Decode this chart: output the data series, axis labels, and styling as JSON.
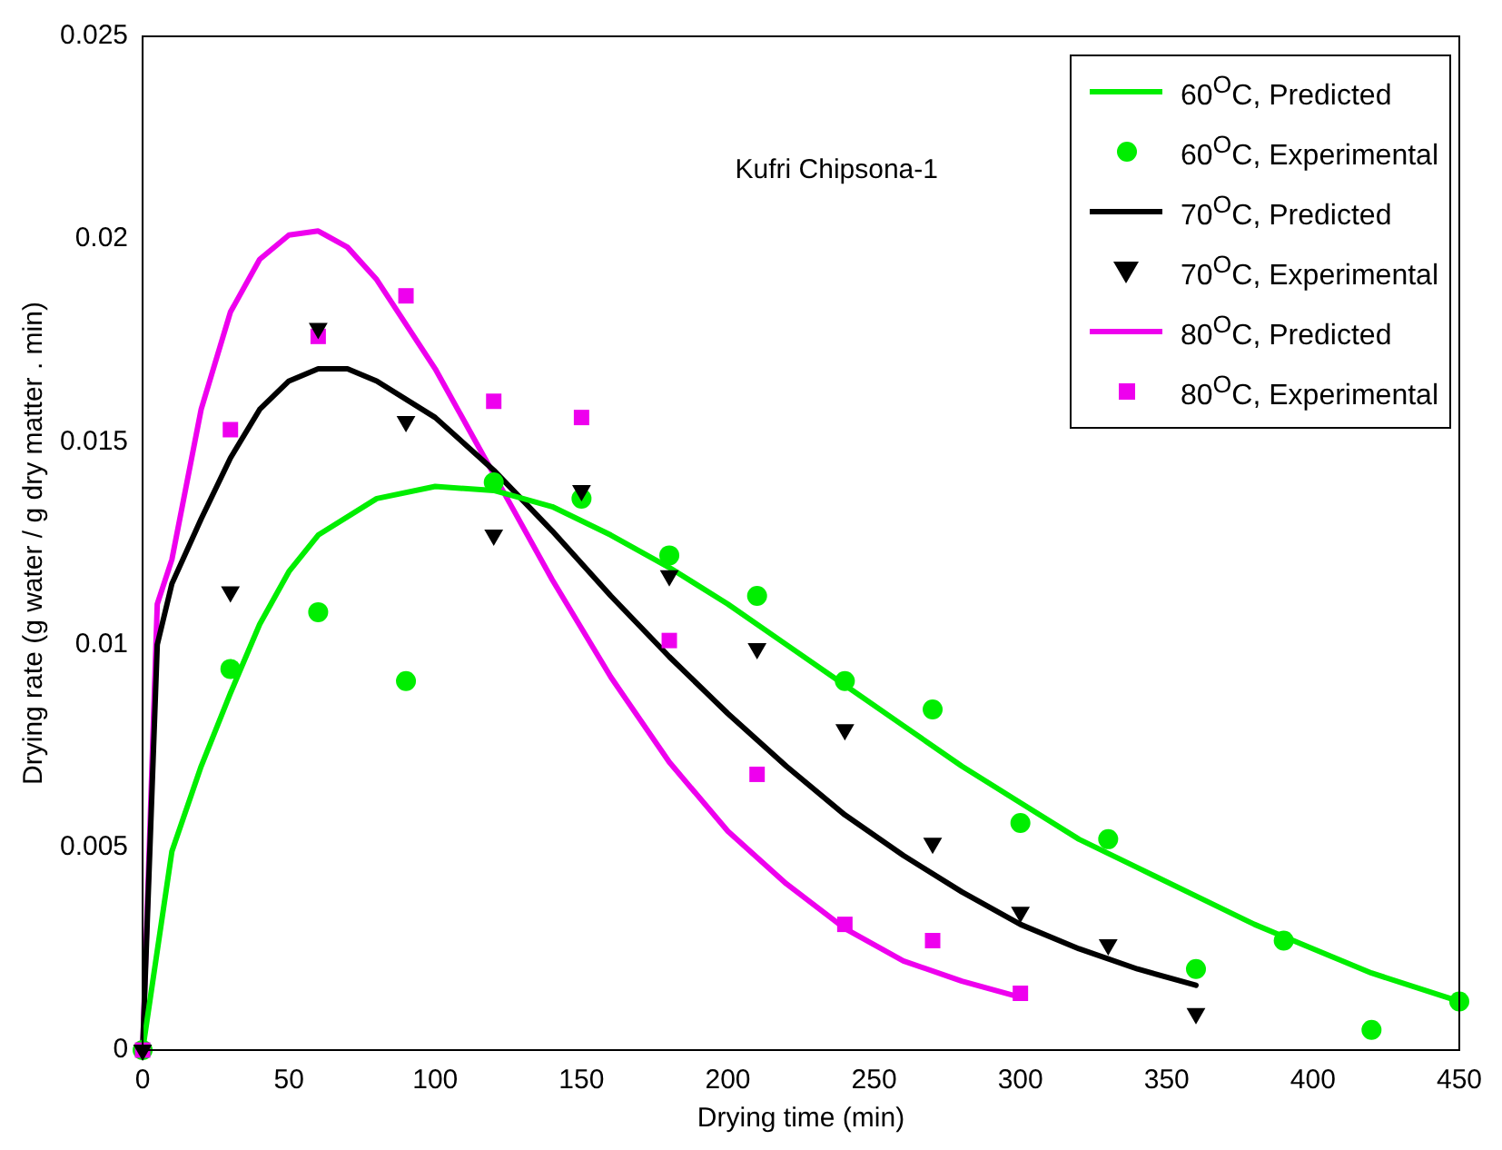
{
  "chart_data": {
    "type": "scatter",
    "xlabel": "Drying time (min)",
    "ylabel": "Drying rate (g water / g dry matter . min)",
    "annotations": [
      "Kufri Chipsona-1"
    ],
    "xlim": [
      0,
      450
    ],
    "xticks": [
      0,
      50,
      100,
      150,
      200,
      250,
      300,
      350,
      400,
      450
    ],
    "ylim": [
      0,
      0.025
    ],
    "yticks": [
      0,
      0.005,
      0.01,
      0.015,
      0.02,
      0.025
    ],
    "grid": false,
    "legend": "top right",
    "series": [
      {
        "name": "60$^{O}$C, Predicted",
        "type": "line",
        "color": "#00ee00",
        "marker": "none",
        "line_style": "solid",
        "x": [
          0,
          10,
          20,
          30,
          40,
          50,
          60,
          80,
          100,
          120,
          140,
          160,
          180,
          200,
          220,
          240,
          260,
          280,
          300,
          320,
          340,
          360,
          380,
          400,
          420,
          450
        ],
        "values": [
          0,
          0.0049,
          0.007,
          0.0088,
          0.0105,
          0.0118,
          0.0127,
          0.0136,
          0.0139,
          0.0138,
          0.0134,
          0.0127,
          0.0119,
          0.011,
          0.01,
          0.009,
          0.008,
          0.007,
          0.0061,
          0.0052,
          0.0045,
          0.0038,
          0.0031,
          0.0025,
          0.0019,
          0.0012
        ]
      },
      {
        "name": "60$^{O}$C, Experimental",
        "type": "scatter",
        "color": "#00ee00",
        "marker": "circle",
        "x": [
          0,
          30,
          60,
          90,
          120,
          150,
          180,
          210,
          240,
          270,
          300,
          330,
          360,
          390,
          420,
          450
        ],
        "values": [
          0,
          0.0094,
          0.0108,
          0.0091,
          0.014,
          0.0136,
          0.0122,
          0.0112,
          0.0091,
          0.0084,
          0.0056,
          0.0052,
          0.002,
          0.0027,
          0.0005,
          0.0012
        ]
      },
      {
        "name": "70$^{O}$C, Predicted",
        "type": "line",
        "color": "#000000",
        "marker": "none",
        "line_style": "solid",
        "x": [
          0,
          5,
          10,
          20,
          30,
          40,
          50,
          60,
          70,
          80,
          100,
          120,
          140,
          160,
          180,
          200,
          220,
          240,
          260,
          280,
          300,
          320,
          340,
          360
        ],
        "values": [
          0,
          0.01,
          0.0115,
          0.0131,
          0.0146,
          0.0158,
          0.0165,
          0.0168,
          0.0168,
          0.0165,
          0.0156,
          0.0143,
          0.0128,
          0.0112,
          0.0097,
          0.0083,
          0.007,
          0.0058,
          0.0048,
          0.0039,
          0.0031,
          0.0025,
          0.002,
          0.0016
        ]
      },
      {
        "name": "70$^{O}$C, Experimental",
        "type": "scatter",
        "color": "#000000",
        "marker": "triangle",
        "x": [
          0,
          30,
          60,
          90,
          120,
          150,
          180,
          210,
          240,
          270,
          300,
          330,
          360
        ],
        "values": [
          0,
          0.0113,
          0.0178,
          0.0155,
          0.0127,
          0.0138,
          0.0117,
          0.0099,
          0.0079,
          0.0051,
          0.0034,
          0.0026,
          0.0009
        ]
      },
      {
        "name": "80$^{O}$C, Predicted",
        "type": "line",
        "color": "#ee00ee",
        "marker": "none",
        "line_style": "solid",
        "x": [
          0,
          5,
          10,
          20,
          30,
          40,
          50,
          60,
          70,
          80,
          100,
          120,
          140,
          160,
          180,
          200,
          220,
          240,
          260,
          280,
          300
        ],
        "values": [
          0,
          0.011,
          0.0121,
          0.0158,
          0.0182,
          0.0195,
          0.0201,
          0.0202,
          0.0198,
          0.019,
          0.0168,
          0.0142,
          0.0116,
          0.0092,
          0.0071,
          0.0054,
          0.0041,
          0.003,
          0.0022,
          0.0017,
          0.0013
        ]
      },
      {
        "name": "80$^{O}$C, Experimental",
        "type": "scatter",
        "color": "#ee00ee",
        "marker": "square",
        "x": [
          0,
          30,
          60,
          90,
          120,
          150,
          180,
          210,
          240,
          270,
          300
        ],
        "values": [
          0,
          0.0153,
          0.0176,
          0.0186,
          0.016,
          0.0156,
          0.0101,
          0.0068,
          0.0031,
          0.0027,
          0.0014
        ]
      }
    ]
  }
}
